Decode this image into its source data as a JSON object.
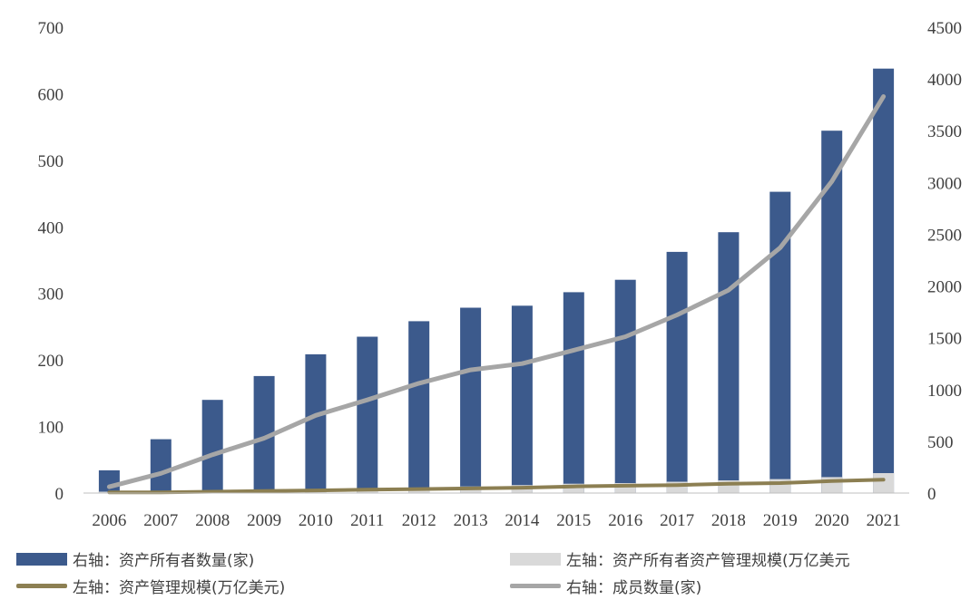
{
  "chart_data": {
    "type": "bar+line",
    "categories": [
      "2006",
      "2007",
      "2008",
      "2009",
      "2010",
      "2011",
      "2012",
      "2013",
      "2014",
      "2015",
      "2016",
      "2017",
      "2018",
      "2019",
      "2020",
      "2021"
    ],
    "left_axis": {
      "ylim": [
        0,
        700
      ],
      "ticks": [
        "0",
        "100",
        "200",
        "300",
        "400",
        "500",
        "600",
        "700"
      ]
    },
    "right_axis": {
      "ylim": [
        0,
        4500
      ],
      "ticks": [
        "0",
        "500",
        "1000",
        "1500",
        "2000",
        "2500",
        "3000",
        "3500",
        "4000",
        "4500"
      ]
    },
    "series": [
      {
        "name": "右轴：资产所有者数量(家)",
        "type": "bar",
        "axis": "right",
        "color": "#3c5a8c",
        "values": [
          220,
          520,
          900,
          1130,
          1340,
          1510,
          1660,
          1790,
          1810,
          1940,
          2060,
          2330,
          2520,
          2910,
          3500,
          4100
        ]
      },
      {
        "name": "左轴：资产所有者资产管理规模(万亿美元",
        "type": "bar",
        "axis": "left",
        "color": "#d9d9d9",
        "values": [
          2,
          3,
          4,
          5,
          6,
          7,
          8,
          10,
          12,
          14,
          15,
          17,
          19,
          21,
          24,
          30
        ]
      },
      {
        "name": "左轴：资产管理规模(万亿美元)",
        "type": "line",
        "axis": "left",
        "color": "#8c7f52",
        "values": [
          1,
          1,
          2,
          3,
          4,
          5,
          6,
          7,
          8,
          10,
          11,
          12,
          14,
          15,
          18,
          20
        ]
      },
      {
        "name": "右轴：成员数量(家)",
        "type": "line",
        "axis": "right",
        "color": "#a6a6a6",
        "values": [
          60,
          190,
          370,
          530,
          750,
          900,
          1060,
          1190,
          1250,
          1380,
          1510,
          1720,
          1960,
          2370,
          3010,
          3830
        ]
      }
    ],
    "legend_position": "bottom"
  }
}
